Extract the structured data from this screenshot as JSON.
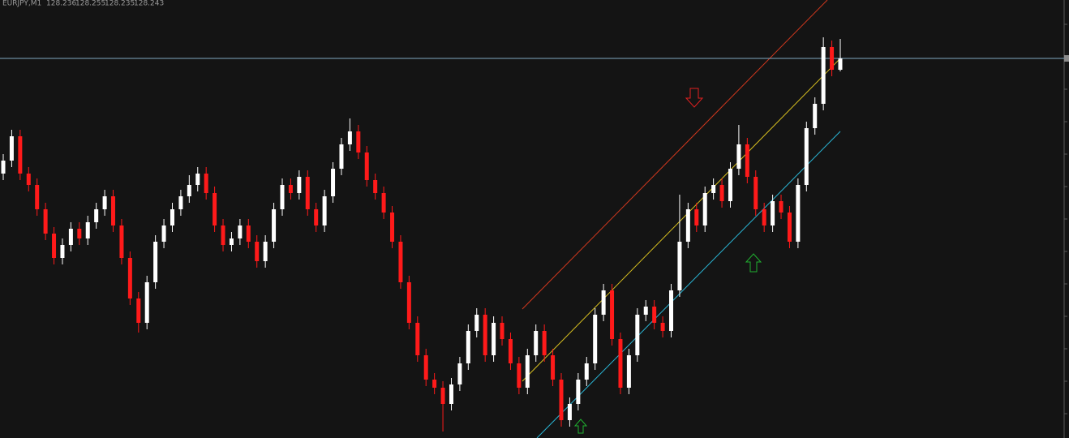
{
  "chart_data": {
    "type": "candlestick",
    "title": "EURJPY,M1",
    "up_color": "#ffffff",
    "down_color": "#ff1a1a",
    "price_line_color": "#7fa8c0",
    "ylim": [
      128.009,
      128.279
    ],
    "open": [
      128.172,
      128.18,
      128.195,
      128.172,
      128.165,
      128.15,
      128.135,
      128.12,
      128.128,
      128.138,
      128.132,
      128.142,
      128.15,
      128.158,
      128.14,
      128.12,
      128.095,
      128.08,
      128.105,
      128.13,
      128.14,
      128.15,
      128.158,
      128.165,
      128.172,
      128.16,
      128.14,
      128.128,
      128.132,
      128.14,
      128.13,
      128.118,
      128.13,
      128.15,
      128.165,
      128.16,
      128.17,
      128.15,
      128.14,
      128.158,
      128.175,
      128.19,
      128.198,
      128.185,
      128.168,
      128.16,
      128.148,
      128.13,
      128.105,
      128.08,
      128.06,
      128.045,
      128.04,
      128.03,
      128.042,
      128.055,
      128.075,
      128.085,
      128.06,
      128.08,
      128.07,
      128.055,
      128.04,
      128.06,
      128.075,
      128.06,
      128.045,
      128.02,
      128.03,
      128.045,
      128.055,
      128.085,
      128.1,
      128.07,
      128.04,
      128.06,
      128.085,
      128.09,
      128.08,
      128.075,
      128.1,
      128.13,
      128.15,
      128.14,
      128.16,
      128.165,
      128.155,
      128.175,
      128.19,
      128.17,
      128.15,
      128.14,
      128.155,
      128.148,
      128.13,
      128.165,
      128.2,
      128.215,
      128.25,
      128.236
    ],
    "high": [
      128.184,
      128.199,
      128.199,
      128.176,
      128.169,
      128.154,
      128.139,
      128.132,
      128.142,
      128.142,
      128.146,
      128.154,
      128.162,
      128.162,
      128.144,
      128.124,
      128.099,
      128.109,
      128.134,
      128.144,
      128.154,
      128.162,
      128.171,
      128.176,
      128.176,
      128.164,
      128.144,
      128.136,
      128.144,
      128.144,
      128.134,
      128.134,
      128.154,
      128.169,
      128.169,
      128.174,
      128.174,
      128.154,
      128.162,
      128.179,
      128.194,
      128.206,
      128.202,
      128.189,
      128.172,
      128.164,
      128.152,
      128.134,
      128.109,
      128.084,
      128.064,
      128.049,
      128.044,
      128.046,
      128.059,
      128.079,
      128.089,
      128.089,
      128.084,
      128.084,
      128.074,
      128.059,
      128.064,
      128.079,
      128.079,
      128.064,
      128.049,
      128.034,
      128.049,
      128.059,
      128.089,
      128.104,
      128.104,
      128.074,
      128.064,
      128.089,
      128.094,
      128.094,
      128.084,
      128.104,
      128.159,
      128.154,
      128.154,
      128.164,
      128.169,
      128.169,
      128.179,
      128.202,
      128.194,
      128.174,
      128.154,
      128.159,
      128.159,
      128.152,
      128.169,
      128.204,
      128.219,
      128.256,
      128.254,
      128.255
    ],
    "low": [
      128.168,
      128.176,
      128.168,
      128.161,
      128.146,
      128.131,
      128.116,
      128.116,
      128.124,
      128.128,
      128.128,
      128.138,
      128.146,
      128.136,
      128.116,
      128.091,
      128.074,
      128.076,
      128.101,
      128.126,
      128.136,
      128.146,
      128.154,
      128.161,
      128.156,
      128.136,
      128.124,
      128.124,
      128.128,
      128.126,
      128.114,
      128.114,
      128.126,
      128.146,
      128.156,
      128.156,
      128.146,
      128.136,
      128.136,
      128.154,
      128.171,
      128.186,
      128.181,
      128.164,
      128.156,
      128.144,
      128.126,
      128.101,
      128.076,
      128.056,
      128.041,
      128.036,
      128.013,
      128.026,
      128.038,
      128.051,
      128.071,
      128.056,
      128.056,
      128.066,
      128.051,
      128.036,
      128.036,
      128.056,
      128.056,
      128.041,
      128.016,
      128.016,
      128.026,
      128.041,
      128.051,
      128.081,
      128.066,
      128.036,
      128.036,
      128.056,
      128.081,
      128.076,
      128.071,
      128.071,
      128.096,
      128.126,
      128.136,
      128.136,
      128.156,
      128.151,
      128.151,
      128.171,
      128.166,
      128.146,
      128.136,
      128.136,
      128.144,
      128.126,
      128.126,
      128.161,
      128.196,
      128.211,
      128.232,
      128.235
    ],
    "close": [
      128.18,
      128.195,
      128.172,
      128.165,
      128.15,
      128.135,
      128.12,
      128.128,
      128.138,
      128.132,
      128.142,
      128.15,
      128.158,
      128.14,
      128.12,
      128.095,
      128.08,
      128.105,
      128.13,
      128.14,
      128.15,
      128.158,
      128.165,
      128.172,
      128.16,
      128.14,
      128.128,
      128.132,
      128.14,
      128.13,
      128.118,
      128.13,
      128.15,
      128.165,
      128.16,
      128.17,
      128.15,
      128.14,
      128.158,
      128.175,
      128.19,
      128.198,
      128.185,
      128.168,
      128.16,
      128.148,
      128.13,
      128.105,
      128.08,
      128.06,
      128.045,
      128.04,
      128.03,
      128.042,
      128.055,
      128.075,
      128.085,
      128.06,
      128.08,
      128.07,
      128.055,
      128.04,
      128.06,
      128.075,
      128.06,
      128.045,
      128.02,
      128.03,
      128.045,
      128.055,
      128.085,
      128.1,
      128.07,
      128.04,
      128.06,
      128.085,
      128.09,
      128.08,
      128.075,
      128.1,
      128.13,
      128.15,
      128.14,
      128.16,
      128.165,
      128.155,
      128.175,
      128.19,
      128.17,
      128.15,
      128.14,
      128.155,
      128.148,
      128.13,
      128.165,
      128.2,
      128.215,
      128.25,
      128.236,
      128.243
    ]
  }
}
